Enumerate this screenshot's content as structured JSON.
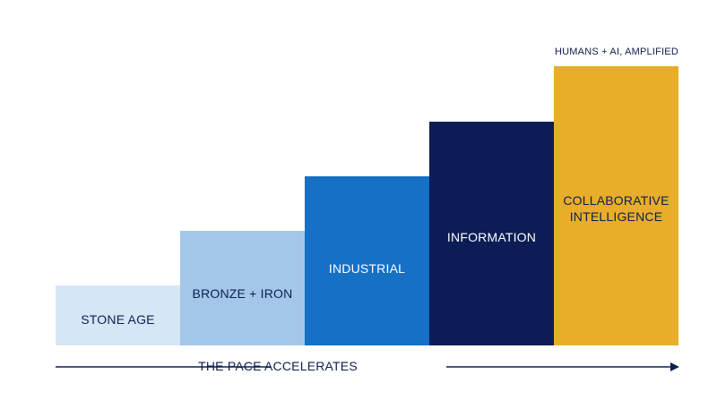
{
  "top_annotation": "HUMANS + AI, AMPLIFIED",
  "axis_label": "THE PACE ACCELERATES",
  "steps": [
    {
      "label": "STONE AGE",
      "level": 1,
      "color": "#d6e6f6",
      "text_color": "#0e1f4f"
    },
    {
      "label": "BRONZE + IRON",
      "level": 2,
      "color": "#a4c7e9",
      "text_color": "#0e1f4f"
    },
    {
      "label": "INDUSTRIAL",
      "level": 3,
      "color": "#1570c6",
      "text_color": "#ffffff"
    },
    {
      "label": "INFORMATION",
      "level": 4,
      "color": "#0b1c56",
      "text_color": "#ffffff"
    },
    {
      "label": "COLLABORATIVE\nINTELLIGENCE",
      "level": 5,
      "color": "#e8ad2a",
      "text_color": "#0e1f4f"
    }
  ],
  "colors": {
    "axis": "#0e1f4f"
  },
  "icons": {
    "axis_arrow": "arrow-right-icon"
  }
}
